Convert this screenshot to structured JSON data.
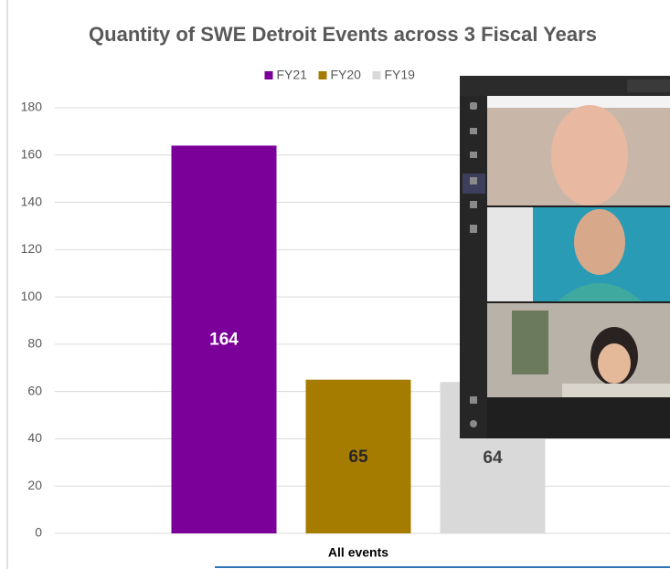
{
  "chart_data": {
    "type": "bar",
    "title": "Quantity of SWE Detroit Events across 3 Fiscal Years",
    "categories": [
      "All events"
    ],
    "series": [
      {
        "name": "FY21",
        "color": "#7b0099",
        "values": [
          164
        ]
      },
      {
        "name": "FY20",
        "color": "#a67c00",
        "values": [
          65
        ]
      },
      {
        "name": "FY19",
        "color": "#d9d9d9",
        "values": [
          64
        ]
      }
    ],
    "label_colors": [
      "#ffffff",
      "#262626",
      "#404040"
    ],
    "ylim": [
      0,
      180
    ],
    "yticks": [
      0,
      20,
      40,
      60,
      80,
      100,
      120,
      140,
      160,
      180
    ],
    "grid": true
  }
}
